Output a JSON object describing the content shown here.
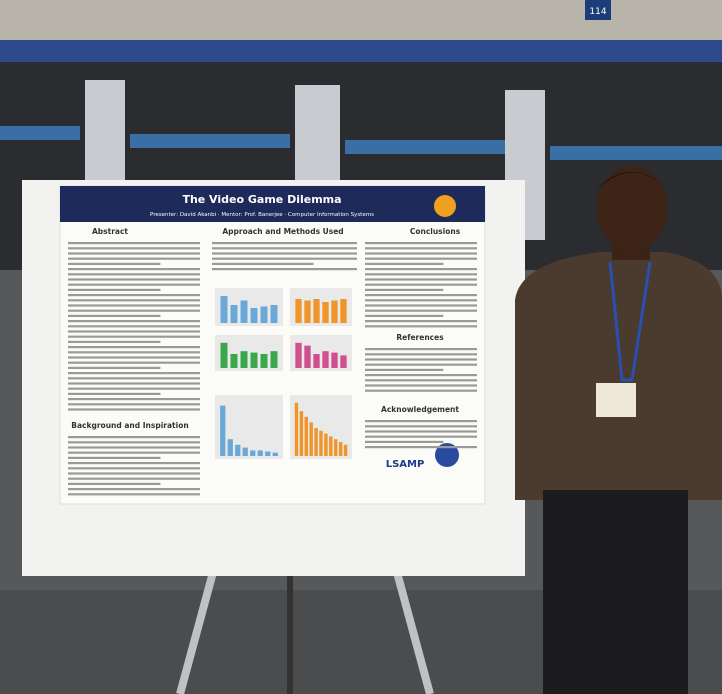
{
  "poster": {
    "title": "The Video Game Dilemma",
    "byline": "Presenter: David Akanbi · Mentor: Prof. Banerjee · Computer Information Systems",
    "sections": [
      "Abstract",
      "Approach and Methods Used",
      "Conclusions",
      "References",
      "Acknowledgement",
      "Background and Inspiration"
    ],
    "logo": "LSAMP"
  },
  "sign": "114"
}
